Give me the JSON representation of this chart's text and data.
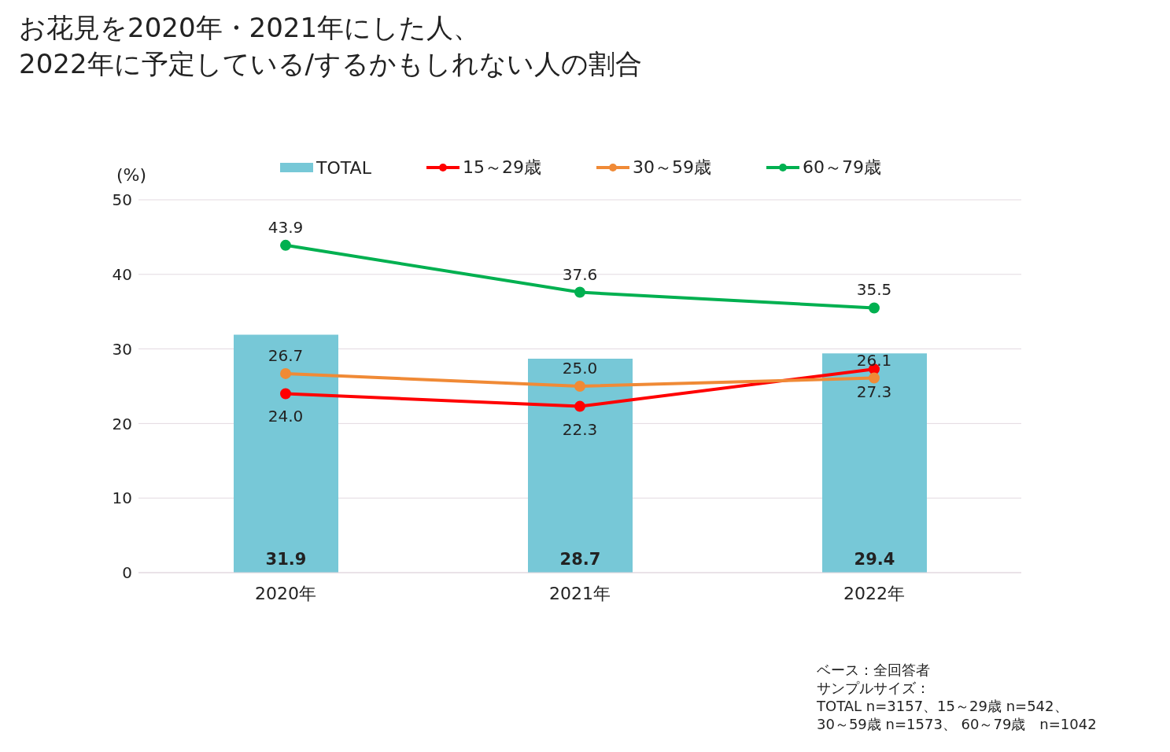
{
  "chart_data": {
    "type": "line",
    "title": "お花見を2020年・2021年にした人、\n2022年に予定している/するかもしれない人の割合",
    "ylabel": "(%)",
    "categories": [
      "2020年",
      "2021年",
      "2022年"
    ],
    "series": [
      {
        "name": "TOTAL",
        "type": "bar",
        "color": "#77c8d7",
        "values": [
          31.9,
          28.7,
          29.4
        ]
      },
      {
        "name": "15～29歳",
        "color": "#ff0000",
        "values": [
          24.0,
          22.3,
          27.3
        ],
        "value_labels": [
          "24.0",
          "22.3",
          "27.3"
        ]
      },
      {
        "name": "30～59歳",
        "color": "#f08a36",
        "values": [
          26.7,
          25.0,
          26.1
        ],
        "value_labels": [
          "26.7",
          "25.0",
          "26.1"
        ]
      },
      {
        "name": "60～79歳",
        "color": "#00b050",
        "values": [
          43.9,
          37.6,
          35.5
        ]
      }
    ],
    "ylim": [
      0,
      50
    ],
    "yticks": [
      0,
      10,
      20,
      30,
      40,
      50
    ],
    "grid": "y",
    "legend": "top",
    "marker": "circle",
    "data_labels": true,
    "annotations": [
      "ベース：全回答者",
      "サンプルサイズ：",
      "TOTAL n=3157、15～29歳 n=542、",
      "30～59歳 n=1573、 60～79歳　n=1042"
    ]
  }
}
